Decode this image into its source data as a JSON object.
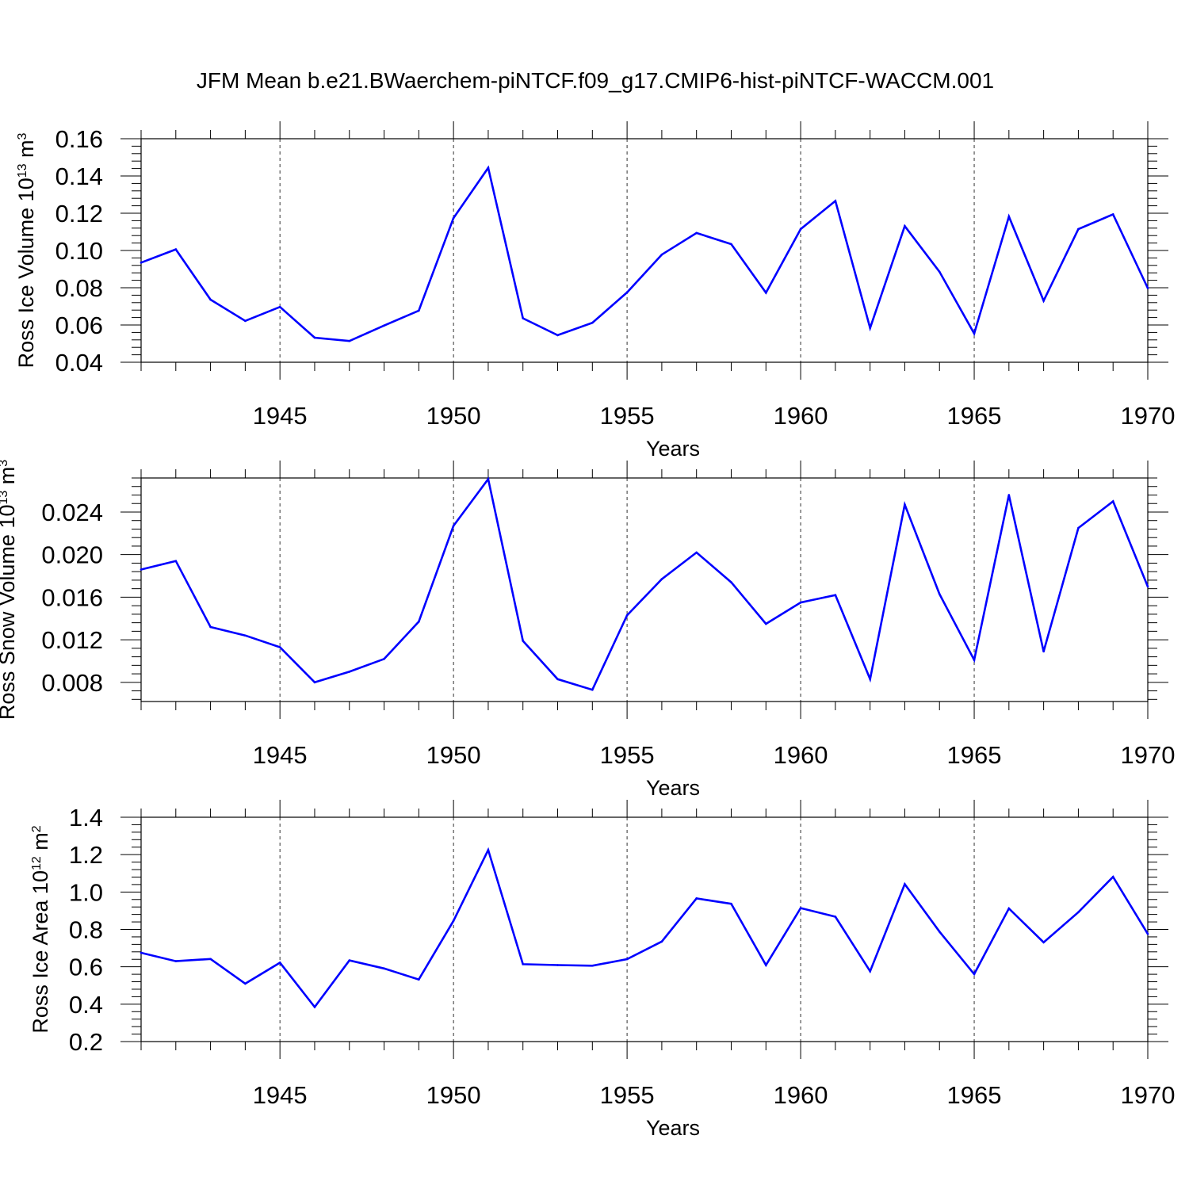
{
  "title": "JFM Mean b.e21.BWaerchem-piNTCF.f09_g17.CMIP6-hist-piNTCF-WACCM.001",
  "colors": {
    "line": "#0000ff",
    "axis": "#000000",
    "grid": "#000000"
  },
  "chart_data": [
    {
      "type": "line",
      "ylabel": "Ross Ice Volume 10",
      "ylabel_exp": "13",
      "ylabel_unit": " m",
      "ylabel_unit_exp": "3",
      "xlabel": "Years",
      "xlim": [
        1941,
        1970
      ],
      "ylim": [
        0.04,
        0.16
      ],
      "yticks": [
        0.04,
        0.06,
        0.08,
        0.1,
        0.12,
        0.14,
        0.16
      ],
      "ytick_labels": [
        "0.04",
        "0.06",
        "0.08",
        "0.10",
        "0.12",
        "0.14",
        "0.16"
      ],
      "xticks": [
        1945,
        1950,
        1955,
        1960,
        1965,
        1970
      ],
      "xtick_labels": [
        "1945",
        "1950",
        "1955",
        "1960",
        "1965",
        "1970"
      ],
      "grid": "vertical dashed at labeled years",
      "x": [
        1941,
        1942,
        1943,
        1944,
        1945,
        1946,
        1947,
        1948,
        1949,
        1950,
        1951,
        1952,
        1953,
        1954,
        1955,
        1956,
        1957,
        1958,
        1959,
        1960,
        1961,
        1962,
        1963,
        1964,
        1965,
        1966,
        1967,
        1968,
        1969,
        1970
      ],
      "values": [
        0.0935,
        0.1006,
        0.0736,
        0.0622,
        0.0697,
        0.0532,
        0.0514,
        0.0597,
        0.0677,
        0.1174,
        0.1444,
        0.0636,
        0.0545,
        0.0612,
        0.0775,
        0.0978,
        0.1094,
        0.1034,
        0.0773,
        0.1115,
        0.1266,
        0.0584,
        0.1131,
        0.0886,
        0.0554,
        0.1182,
        0.073,
        0.1115,
        0.1194,
        0.0798
      ]
    },
    {
      "type": "line",
      "ylabel": "Ross Snow Volume 10",
      "ylabel_exp": "13",
      "ylabel_unit": " m",
      "ylabel_unit_exp": "3",
      "xlabel": "Years",
      "xlim": [
        1941,
        1970
      ],
      "ylim": [
        0.0062,
        0.0272
      ],
      "yticks": [
        0.008,
        0.012,
        0.016,
        0.02,
        0.024
      ],
      "ytick_labels": [
        "0.008",
        "0.012",
        "0.016",
        "0.020",
        "0.024"
      ],
      "xticks": [
        1945,
        1950,
        1955,
        1960,
        1965,
        1970
      ],
      "xtick_labels": [
        "1945",
        "1950",
        "1955",
        "1960",
        "1965",
        "1970"
      ],
      "grid": "vertical dashed at labeled years",
      "x": [
        1941,
        1942,
        1943,
        1944,
        1945,
        1946,
        1947,
        1948,
        1949,
        1950,
        1951,
        1952,
        1953,
        1954,
        1955,
        1956,
        1957,
        1958,
        1959,
        1960,
        1961,
        1962,
        1963,
        1964,
        1965,
        1966,
        1967,
        1968,
        1969,
        1970
      ],
      "values": [
        0.0186,
        0.0194,
        0.0132,
        0.0124,
        0.0113,
        0.008,
        0.009,
        0.0102,
        0.0137,
        0.0227,
        0.0271,
        0.0119,
        0.0083,
        0.0073,
        0.0143,
        0.0177,
        0.0202,
        0.0174,
        0.0135,
        0.0155,
        0.0162,
        0.0083,
        0.0247,
        0.0163,
        0.0101,
        0.0256,
        0.0109,
        0.0225,
        0.025,
        0.017
      ]
    },
    {
      "type": "line",
      "ylabel": "Ross Ice Area 10",
      "ylabel_exp": "12",
      "ylabel_unit": " m",
      "ylabel_unit_exp": "2",
      "xlabel": "Years",
      "xlim": [
        1941,
        1970
      ],
      "ylim": [
        0.2,
        1.4
      ],
      "yticks": [
        0.2,
        0.4,
        0.6,
        0.8,
        1.0,
        1.2,
        1.4
      ],
      "ytick_labels": [
        "0.2",
        "0.4",
        "0.6",
        "0.8",
        "1.0",
        "1.2",
        "1.4"
      ],
      "xticks": [
        1945,
        1950,
        1955,
        1960,
        1965,
        1970
      ],
      "xtick_labels": [
        "1945",
        "1950",
        "1955",
        "1960",
        "1965",
        "1970"
      ],
      "grid": "vertical dashed at labeled years",
      "x": [
        1941,
        1942,
        1943,
        1944,
        1945,
        1946,
        1947,
        1948,
        1949,
        1950,
        1951,
        1952,
        1953,
        1954,
        1955,
        1956,
        1957,
        1958,
        1959,
        1960,
        1961,
        1962,
        1963,
        1964,
        1965,
        1966,
        1967,
        1968,
        1969,
        1970
      ],
      "values": [
        0.675,
        0.63,
        0.642,
        0.51,
        0.622,
        0.385,
        0.634,
        0.591,
        0.532,
        0.846,
        1.225,
        0.614,
        0.609,
        0.606,
        0.641,
        0.735,
        0.966,
        0.937,
        0.609,
        0.914,
        0.868,
        0.576,
        1.042,
        0.788,
        0.561,
        0.912,
        0.731,
        0.892,
        1.081,
        0.776
      ]
    }
  ]
}
